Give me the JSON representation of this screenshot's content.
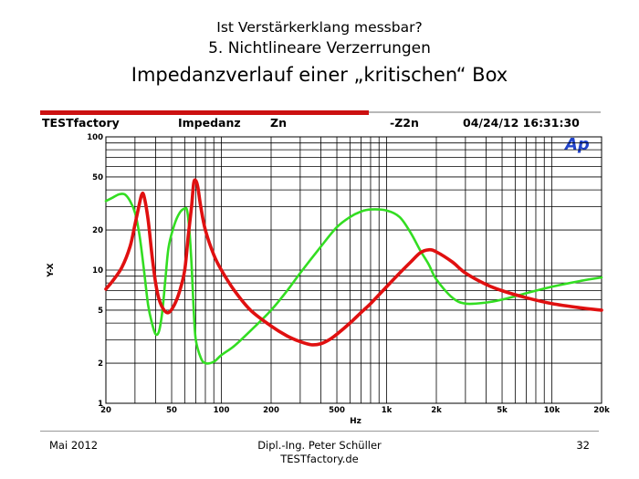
{
  "slide": {
    "title_line1": "Ist Verstärkerklang messbar?",
    "title_line2": "5. Nichtlineare Verzerrungen",
    "title_line3": "Impedanzverlauf einer „kritischen“ Box"
  },
  "header": {
    "brand": "TESTfactory",
    "label": "Impedanz",
    "measurement": "Zn",
    "measurement2": "-Z2n",
    "datetime": "04/24/12 16:31:30",
    "logo_text": "Ap"
  },
  "footer": {
    "date": "Mai 2012",
    "author_line1": "Dipl.-Ing. Peter Schüller",
    "author_line2": "TESTfactory.de",
    "page": "32"
  },
  "colors": {
    "red": "#e01010",
    "green": "#33dd22",
    "bar": "#cc1111"
  },
  "chart_data": {
    "type": "line",
    "xlabel": "Hz",
    "ylabel": "Y-X",
    "x_scale": "log",
    "y_scale": "log",
    "xlim": [
      20,
      20000
    ],
    "ylim": [
      1,
      100
    ],
    "grid": true,
    "x_ticks": [
      20,
      50,
      100,
      200,
      500,
      1000,
      2000,
      5000,
      10000,
      20000
    ],
    "x_tick_labels": [
      "20",
      "50",
      "100",
      "200",
      "500",
      "1k",
      "2k",
      "5k",
      "10k",
      "20k"
    ],
    "y_ticks": [
      1,
      2,
      5,
      10,
      20,
      50,
      100
    ],
    "y_tick_labels": [
      "1",
      "2",
      "5",
      "10",
      "20",
      "50",
      "100"
    ],
    "series": [
      {
        "color": "#e01010",
        "points": [
          [
            20,
            7.2
          ],
          [
            22,
            8.3
          ],
          [
            25,
            10.5
          ],
          [
            28,
            15
          ],
          [
            30,
            22
          ],
          [
            32,
            32
          ],
          [
            33,
            37
          ],
          [
            34,
            36
          ],
          [
            36,
            24
          ],
          [
            38,
            13
          ],
          [
            40,
            8
          ],
          [
            42,
            6
          ],
          [
            45,
            5
          ],
          [
            48,
            4.8
          ],
          [
            52,
            5.5
          ],
          [
            56,
            7
          ],
          [
            60,
            10
          ],
          [
            63,
            18
          ],
          [
            66,
            30
          ],
          [
            68,
            45
          ],
          [
            70,
            47
          ],
          [
            72,
            42
          ],
          [
            75,
            30
          ],
          [
            80,
            20
          ],
          [
            90,
            13
          ],
          [
            100,
            10
          ],
          [
            120,
            7
          ],
          [
            150,
            5
          ],
          [
            200,
            3.8
          ],
          [
            250,
            3.2
          ],
          [
            300,
            2.9
          ],
          [
            350,
            2.75
          ],
          [
            400,
            2.8
          ],
          [
            450,
            3
          ],
          [
            500,
            3.3
          ],
          [
            600,
            4
          ],
          [
            700,
            4.8
          ],
          [
            800,
            5.6
          ],
          [
            1000,
            7.5
          ],
          [
            1200,
            9.5
          ],
          [
            1400,
            11.5
          ],
          [
            1600,
            13.5
          ],
          [
            1800,
            14.2
          ],
          [
            2000,
            13.7
          ],
          [
            2500,
            11.5
          ],
          [
            3000,
            9.5
          ],
          [
            4000,
            7.8
          ],
          [
            5000,
            7
          ],
          [
            7000,
            6.2
          ],
          [
            10000,
            5.6
          ],
          [
            15000,
            5.2
          ],
          [
            20000,
            5
          ]
        ]
      },
      {
        "color": "#33dd22",
        "points": [
          [
            20,
            33
          ],
          [
            22,
            35
          ],
          [
            24,
            37
          ],
          [
            26,
            37
          ],
          [
            28,
            33
          ],
          [
            30,
            27
          ],
          [
            32,
            18
          ],
          [
            34,
            10
          ],
          [
            36,
            5.5
          ],
          [
            38,
            4
          ],
          [
            40,
            3.3
          ],
          [
            42,
            3.5
          ],
          [
            44,
            5
          ],
          [
            46,
            9
          ],
          [
            48,
            15
          ],
          [
            52,
            22
          ],
          [
            56,
            27
          ],
          [
            60,
            29
          ],
          [
            62,
            28
          ],
          [
            64,
            20
          ],
          [
            66,
            11
          ],
          [
            68,
            5
          ],
          [
            70,
            3
          ],
          [
            75,
            2.2
          ],
          [
            80,
            2
          ],
          [
            90,
            2.05
          ],
          [
            100,
            2.3
          ],
          [
            120,
            2.7
          ],
          [
            150,
            3.5
          ],
          [
            200,
            5
          ],
          [
            250,
            7
          ],
          [
            300,
            9.5
          ],
          [
            400,
            15
          ],
          [
            500,
            21
          ],
          [
            600,
            25
          ],
          [
            700,
            27.5
          ],
          [
            800,
            28.5
          ],
          [
            1000,
            28
          ],
          [
            1200,
            25
          ],
          [
            1400,
            19
          ],
          [
            1600,
            14
          ],
          [
            1800,
            11
          ],
          [
            2000,
            8.5
          ],
          [
            2500,
            6.2
          ],
          [
            3000,
            5.6
          ],
          [
            4000,
            5.7
          ],
          [
            5000,
            6
          ],
          [
            7000,
            6.7
          ],
          [
            10000,
            7.5
          ],
          [
            15000,
            8.3
          ],
          [
            20000,
            8.8
          ]
        ]
      }
    ]
  }
}
